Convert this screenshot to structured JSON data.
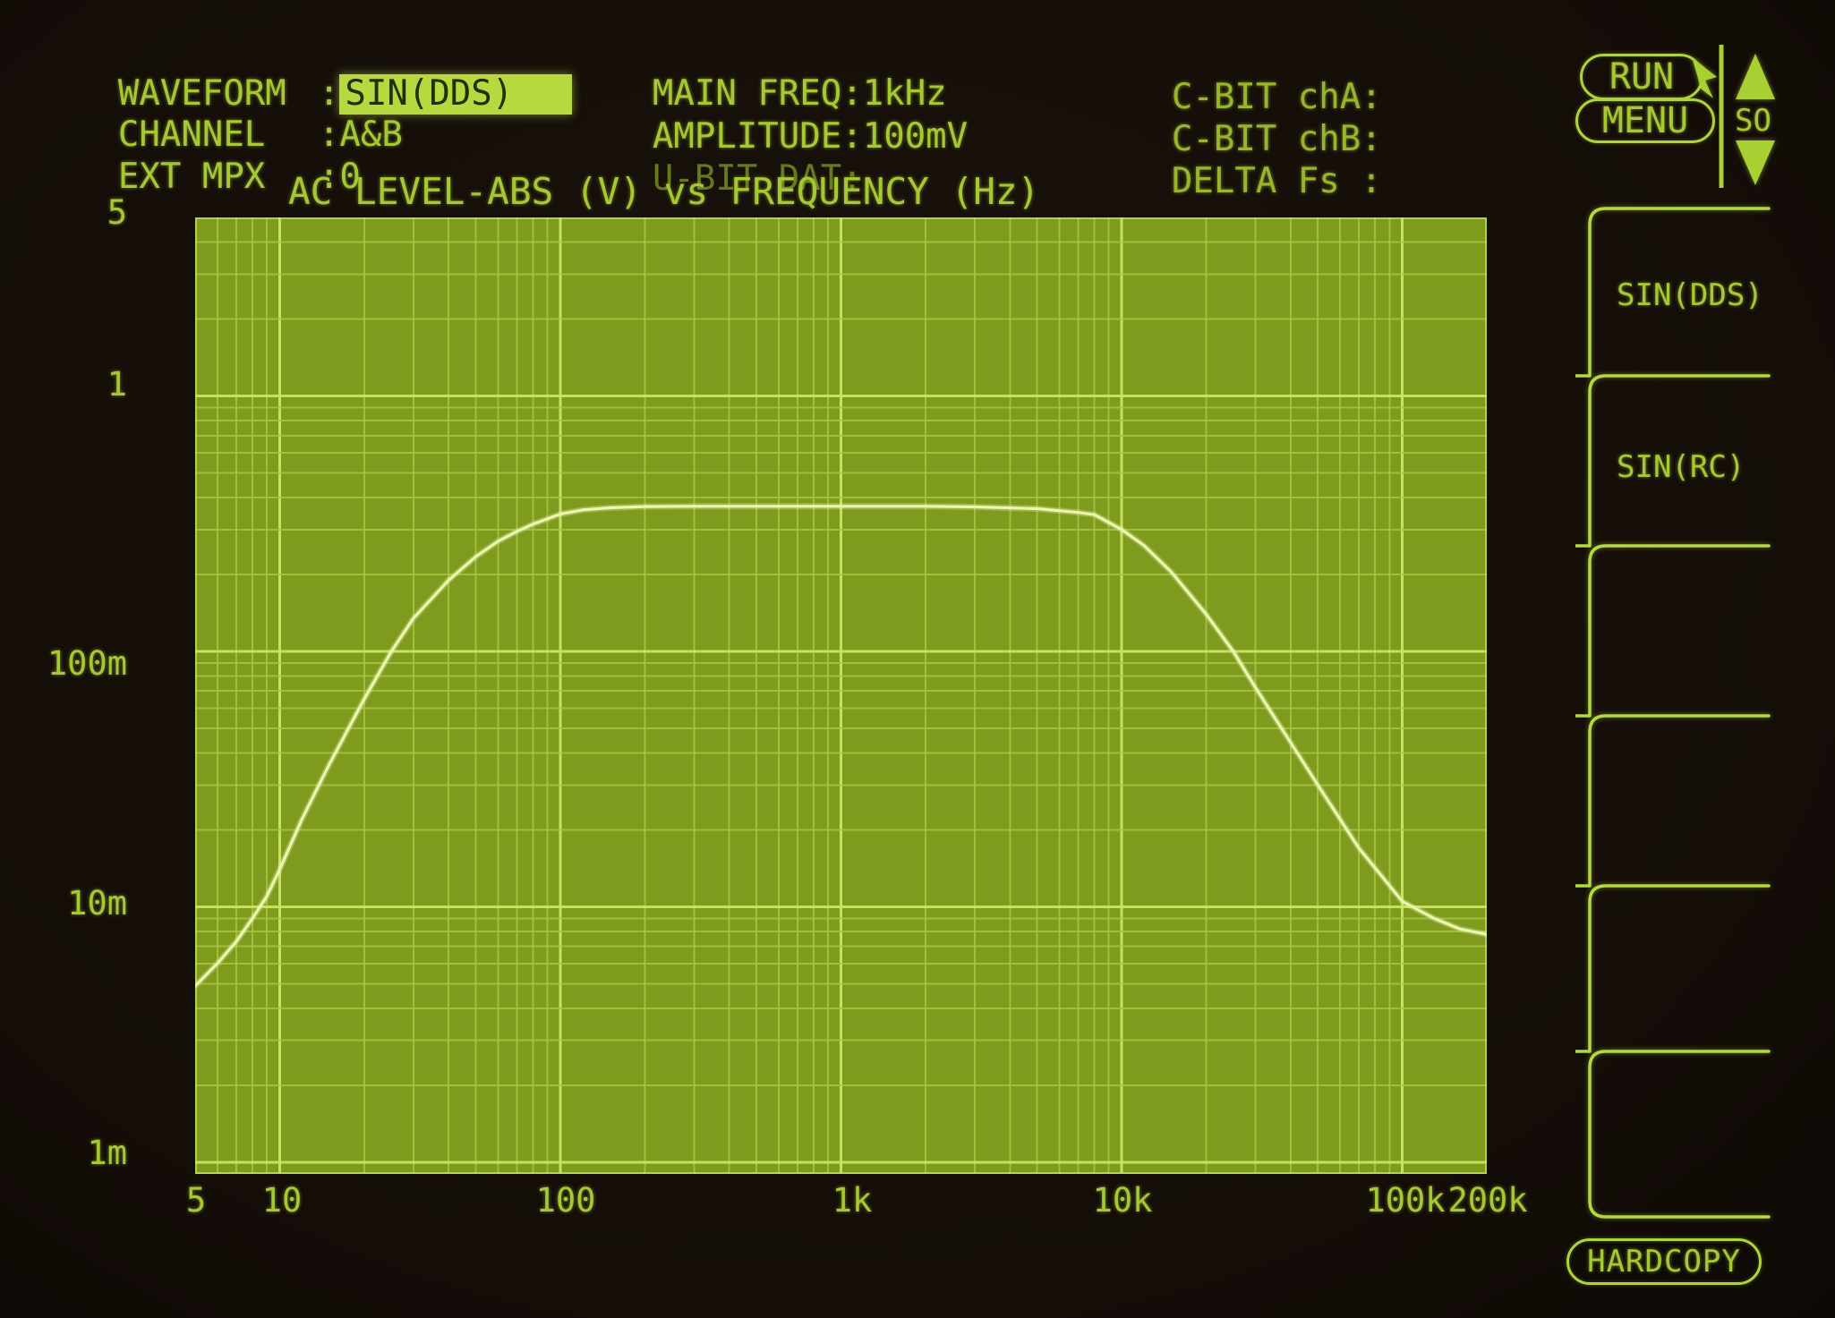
{
  "colors": {
    "screen_bg": "#140d08",
    "text_bright": "#a6c832",
    "text_mid": "#99b52c",
    "text_dim": "#66791c",
    "highlight_bg": "#b7d83e",
    "highlight_text": "#22300a",
    "plot_bg": "#7e9b1e",
    "grid_minor": "#a5c840",
    "grid_major": "#c9e562",
    "curve": "#ecf6b0",
    "frame": "#b4da3e"
  },
  "status_left": {
    "rows": [
      {
        "label": "WAVEFORM",
        "colon": ":",
        "value": "SIN(DDS)",
        "highlighted": true
      },
      {
        "label": "CHANNEL",
        "colon": ":",
        "value": "A&B",
        "highlighted": false
      },
      {
        "label": "EXT MPX",
        "colon": ":",
        "value": "0",
        "highlighted": false
      }
    ]
  },
  "status_mid": {
    "rows": [
      {
        "label": "MAIN FREQ:",
        "value": "1kHz",
        "dim": false
      },
      {
        "label": "AMPLITUDE:",
        "value": "100mV",
        "dim": false
      },
      {
        "label": "U-BIT DAT:",
        "value": "",
        "dim": true
      }
    ]
  },
  "status_right": {
    "rows": [
      {
        "label": "C-BIT chA:",
        "value": ""
      },
      {
        "label": "C-BIT chB:",
        "value": ""
      },
      {
        "label": "DELTA Fs :",
        "value": ""
      }
    ]
  },
  "top_controls": {
    "run_label": "RUN",
    "menu_label": "MENU",
    "page_label": "SO"
  },
  "chart": {
    "title": "AC LEVEL-ABS (V) vs FREQUENCY (Hz)",
    "y_tick_labels": [
      "5",
      "1",
      "100m",
      "10m",
      "1m"
    ],
    "x_tick_labels": [
      "5",
      "10",
      "100",
      "1k",
      "10k",
      "100k",
      "200k"
    ]
  },
  "side_menu": {
    "items": [
      {
        "label": "SIN(DDS)"
      },
      {
        "label": "SIN(RC)"
      },
      {
        "label": ""
      },
      {
        "label": ""
      },
      {
        "label": ""
      },
      {
        "label": ""
      }
    ],
    "hardcopy_label": "HARDCOPY"
  },
  "chart_data": {
    "type": "line",
    "title": "AC LEVEL-ABS (V) vs FREQUENCY (Hz)",
    "xlabel": "FREQUENCY (Hz)",
    "ylabel": "AC LEVEL-ABS (V)",
    "x_scale": "log",
    "y_scale": "log",
    "x_range": [
      5,
      200000
    ],
    "y_range": [
      0.0009,
      5
    ],
    "x_ticks": [
      5,
      10,
      100,
      1000,
      10000,
      100000,
      200000
    ],
    "y_ticks": [
      5,
      1,
      0.1,
      0.01,
      0.001
    ],
    "grid": "log-log minor and decade lines",
    "legend": "none",
    "series": [
      {
        "name": "AC LEVEL-ABS (V)",
        "x": [
          5,
          6,
          7,
          8,
          9,
          10,
          12,
          15,
          20,
          25,
          30,
          40,
          50,
          60,
          70,
          80,
          100,
          120,
          150,
          200,
          300,
          500,
          700,
          1000,
          1500,
          2000,
          3000,
          5000,
          7000,
          8000,
          10000,
          12000,
          15000,
          20000,
          25000,
          30000,
          40000,
          50000,
          70000,
          100000,
          130000,
          160000,
          200000
        ],
        "y": [
          0.0049,
          0.006,
          0.0073,
          0.009,
          0.011,
          0.014,
          0.022,
          0.036,
          0.065,
          0.1,
          0.135,
          0.19,
          0.235,
          0.27,
          0.295,
          0.315,
          0.345,
          0.358,
          0.365,
          0.369,
          0.37,
          0.37,
          0.37,
          0.37,
          0.37,
          0.37,
          0.368,
          0.362,
          0.35,
          0.343,
          0.3,
          0.26,
          0.205,
          0.14,
          0.1,
          0.072,
          0.044,
          0.03,
          0.017,
          0.0105,
          0.009,
          0.0082,
          0.0078
        ]
      }
    ]
  }
}
